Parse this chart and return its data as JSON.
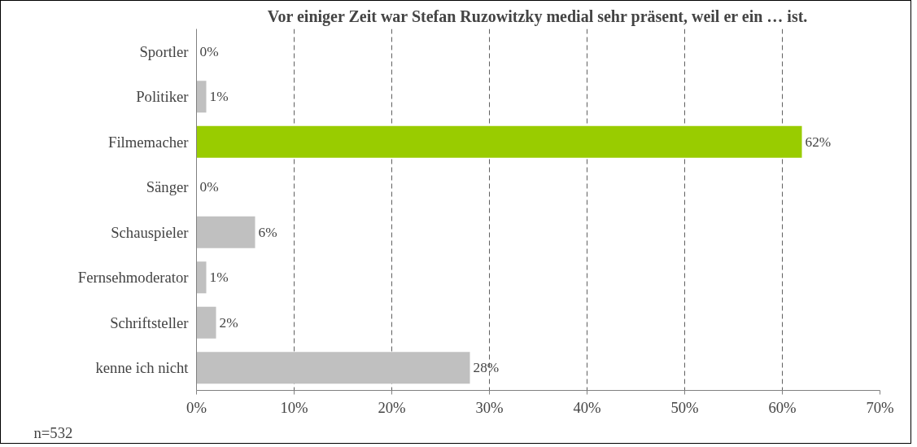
{
  "chart_data": {
    "type": "bar",
    "orientation": "horizontal",
    "title": "Vor einiger Zeit war Stefan Ruzowitzky medial sehr präsent, weil er ein … ist.",
    "categories": [
      "Sportler",
      "Politiker",
      "Filmemacher",
      "Sänger",
      "Schauspieler",
      "Fernsehmoderator",
      "Schriftsteller",
      "kenne ich nicht"
    ],
    "values": [
      0,
      1,
      62,
      0,
      6,
      1,
      2,
      28
    ],
    "colors": [
      "#c0c0c0",
      "#c0c0c0",
      "#99cc00",
      "#c0c0c0",
      "#c0c0c0",
      "#c0c0c0",
      "#c0c0c0",
      "#c0c0c0"
    ],
    "value_labels": [
      "0%",
      "1%",
      "62%",
      "0%",
      "6%",
      "1%",
      "2%",
      "28%"
    ],
    "xlim": [
      0,
      70
    ],
    "xticks": [
      {
        "value": 0,
        "label": "0%"
      },
      {
        "value": 10,
        "label": "10%"
      },
      {
        "value": 20,
        "label": "20%"
      },
      {
        "value": 30,
        "label": "30%"
      },
      {
        "value": 40,
        "label": "40%"
      },
      {
        "value": 50,
        "label": "50%"
      },
      {
        "value": 60,
        "label": "60%"
      },
      {
        "value": 70,
        "label": "70%"
      }
    ],
    "grid": "x",
    "line_style": "dashed",
    "annotations": [
      "n=532"
    ]
  }
}
